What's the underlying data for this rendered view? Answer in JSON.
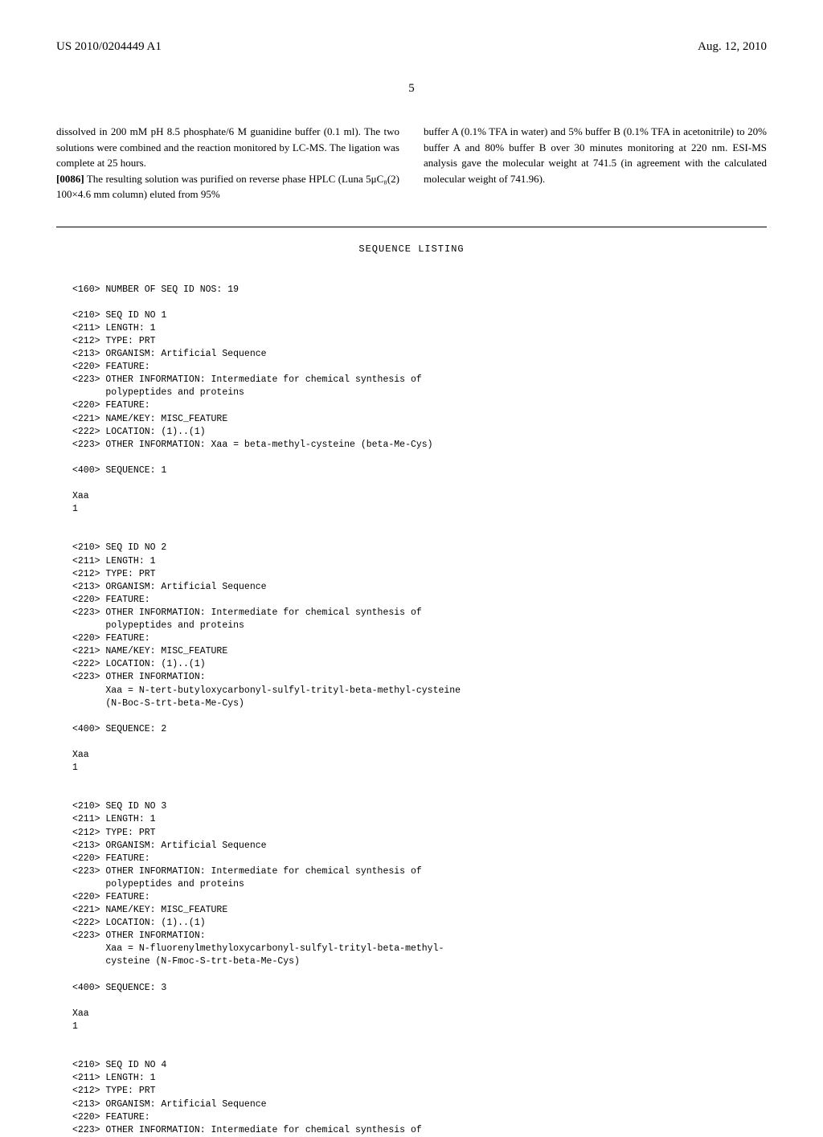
{
  "header": {
    "pub_number": "US 2010/0204449 A1",
    "pub_date": "Aug. 12, 2010"
  },
  "page_number": "5",
  "body": {
    "left_para": "dissolved in 200 mM pH 8.5 phosphate/6 M guanidine buffer (0.1 ml). The two solutions were combined and the reaction monitored by LC-MS. The ligation was complete at 25 hours.",
    "left_para2_num": "[0086]",
    "left_para2": "    The resulting solution was purified on reverse phase HPLC (Luna 5μC₈(2) 100×4.6 mm column) eluted from 95%",
    "right_para": "buffer A (0.1% TFA in water) and 5% buffer B (0.1% TFA in acetonitrile) to 20% buffer A and 80% buffer B over 30 minutes monitoring at 220 nm. ESI-MS analysis gave the molecular weight at 741.5 (in agreement with the calculated molecular weight of 741.96)."
  },
  "sequence_listing": {
    "title": "SEQUENCE LISTING",
    "num_seq": "<160> NUMBER OF SEQ ID NOS: 19",
    "seq1": {
      "l1": "<210> SEQ ID NO 1",
      "l2": "<211> LENGTH: 1",
      "l3": "<212> TYPE: PRT",
      "l4": "<213> ORGANISM: Artificial Sequence",
      "l5": "<220> FEATURE:",
      "l6": "<223> OTHER INFORMATION: Intermediate for chemical synthesis of",
      "l6b": "      polypeptides and proteins",
      "l7": "<220> FEATURE:",
      "l8": "<221> NAME/KEY: MISC_FEATURE",
      "l9": "<222> LOCATION: (1)..(1)",
      "l10": "<223> OTHER INFORMATION: Xaa = beta-methyl-cysteine (beta-Me-Cys)",
      "l11": "<400> SEQUENCE: 1",
      "l12": "Xaa",
      "l13": "1"
    },
    "seq2": {
      "l1": "<210> SEQ ID NO 2",
      "l2": "<211> LENGTH: 1",
      "l3": "<212> TYPE: PRT",
      "l4": "<213> ORGANISM: Artificial Sequence",
      "l5": "<220> FEATURE:",
      "l6": "<223> OTHER INFORMATION: Intermediate for chemical synthesis of",
      "l6b": "      polypeptides and proteins",
      "l7": "<220> FEATURE:",
      "l8": "<221> NAME/KEY: MISC_FEATURE",
      "l9": "<222> LOCATION: (1)..(1)",
      "l10": "<223> OTHER INFORMATION:",
      "l10b": "      Xaa = N-tert-butyloxycarbonyl-sulfyl-trityl-beta-methyl-cysteine",
      "l10c": "      (N-Boc-S-trt-beta-Me-Cys)",
      "l11": "<400> SEQUENCE: 2",
      "l12": "Xaa",
      "l13": "1"
    },
    "seq3": {
      "l1": "<210> SEQ ID NO 3",
      "l2": "<211> LENGTH: 1",
      "l3": "<212> TYPE: PRT",
      "l4": "<213> ORGANISM: Artificial Sequence",
      "l5": "<220> FEATURE:",
      "l6": "<223> OTHER INFORMATION: Intermediate for chemical synthesis of",
      "l6b": "      polypeptides and proteins",
      "l7": "<220> FEATURE:",
      "l8": "<221> NAME/KEY: MISC_FEATURE",
      "l9": "<222> LOCATION: (1)..(1)",
      "l10": "<223> OTHER INFORMATION:",
      "l10b": "      Xaa = N-fluorenylmethyloxycarbonyl-sulfyl-trityl-beta-methyl-",
      "l10c": "      cysteine (N-Fmoc-S-trt-beta-Me-Cys)",
      "l11": "<400> SEQUENCE: 3",
      "l12": "Xaa",
      "l13": "1"
    },
    "seq4": {
      "l1": "<210> SEQ ID NO 4",
      "l2": "<211> LENGTH: 1",
      "l3": "<212> TYPE: PRT",
      "l4": "<213> ORGANISM: Artificial Sequence",
      "l5": "<220> FEATURE:",
      "l6": "<223> OTHER INFORMATION: Intermediate for chemical synthesis of"
    }
  }
}
